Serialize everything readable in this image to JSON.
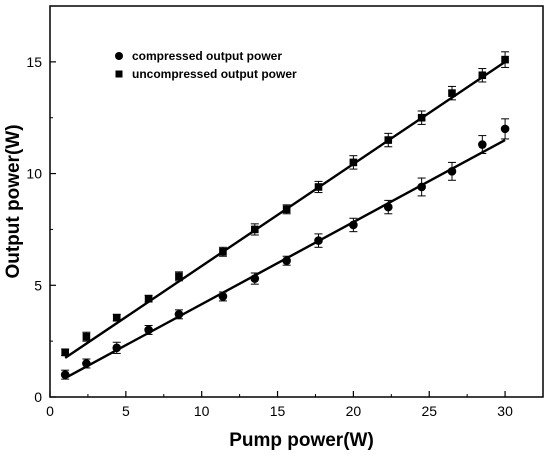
{
  "chart_data": {
    "type": "scatter",
    "xlabel": "Pump power(W)",
    "ylabel": "Output power(W)",
    "xlim": [
      0,
      32.5
    ],
    "ylim": [
      0,
      17.5
    ],
    "xticks": [
      0,
      5,
      10,
      15,
      20,
      25,
      30
    ],
    "yticks": [
      0,
      5,
      10,
      15
    ],
    "grid": false,
    "legend_position": "top-left",
    "series": [
      {
        "name": "compressed output power",
        "marker": "circle",
        "x": [
          1.0,
          2.4,
          4.4,
          6.5,
          8.5,
          11.4,
          13.5,
          15.6,
          17.7,
          20.0,
          22.3,
          24.5,
          26.5,
          28.5,
          30.0
        ],
        "y": [
          1.0,
          1.5,
          2.2,
          3.0,
          3.7,
          4.5,
          5.3,
          6.1,
          7.0,
          7.7,
          8.5,
          9.4,
          10.1,
          11.3,
          12.0
        ],
        "error": [
          0.2,
          0.2,
          0.25,
          0.2,
          0.2,
          0.2,
          0.25,
          0.2,
          0.3,
          0.3,
          0.3,
          0.4,
          0.4,
          0.4,
          0.45
        ],
        "fit": {
          "x0": 1.0,
          "y0": 0.85,
          "x1": 30.0,
          "y1": 11.5
        }
      },
      {
        "name": "uncompressed output power",
        "marker": "square",
        "x": [
          1.0,
          2.4,
          4.4,
          6.5,
          8.5,
          11.4,
          13.5,
          15.6,
          17.7,
          20.0,
          22.3,
          24.5,
          26.5,
          28.5,
          30.0
        ],
        "y": [
          2.0,
          2.7,
          3.55,
          4.4,
          5.4,
          6.5,
          7.5,
          8.4,
          9.4,
          10.5,
          11.5,
          12.5,
          13.6,
          14.4,
          15.1
        ],
        "error": [
          0.15,
          0.2,
          0.15,
          0.15,
          0.2,
          0.2,
          0.25,
          0.2,
          0.25,
          0.3,
          0.3,
          0.3,
          0.3,
          0.3,
          0.35
        ],
        "fit": {
          "x0": 1.0,
          "y0": 1.75,
          "x1": 30.0,
          "y1": 15.0
        }
      }
    ]
  },
  "colors": {
    "ink": "#000000",
    "background": "#ffffff"
  }
}
